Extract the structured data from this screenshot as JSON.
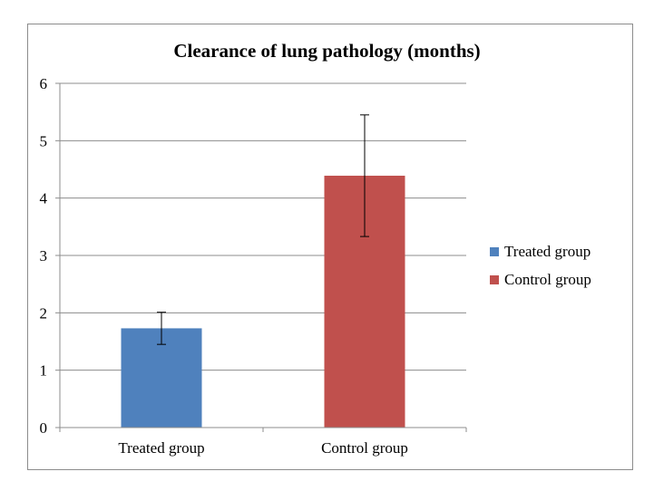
{
  "chart_data": {
    "type": "bar",
    "title": "Clearance of lung pathology (months)",
    "categories": [
      "Treated group",
      "Control group"
    ],
    "series": [
      {
        "name": "Treated group",
        "values": [
          1.73,
          null
        ],
        "error": [
          0.28,
          null
        ],
        "color": "#4f81bd"
      },
      {
        "name": "Control group",
        "values": [
          null,
          4.39
        ],
        "error": [
          null,
          1.06
        ],
        "color": "#c0504d"
      }
    ],
    "ylim": [
      0,
      6
    ],
    "yticks": [
      "0",
      "1",
      "2",
      "3",
      "4",
      "5",
      "6"
    ],
    "xlabel": "",
    "ylabel": "",
    "grid": true,
    "legend_position": "right"
  }
}
